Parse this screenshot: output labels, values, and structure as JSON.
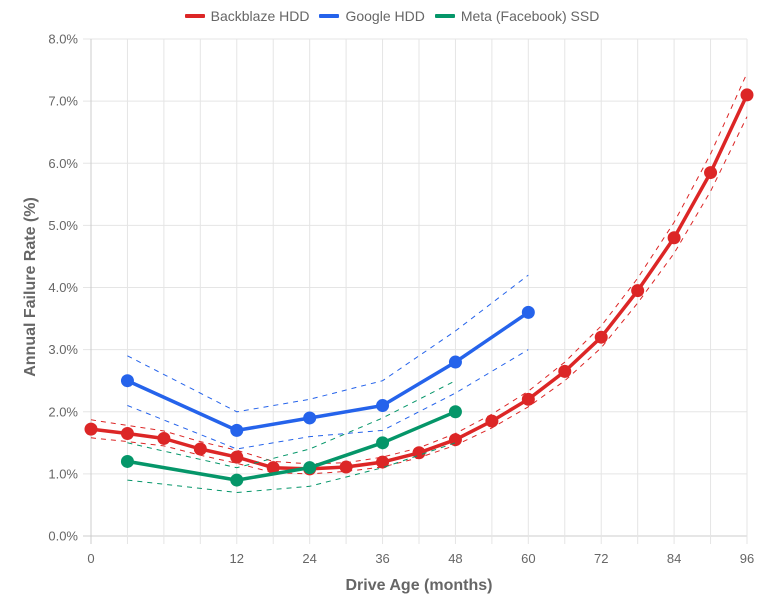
{
  "legend": {
    "items": [
      {
        "label": "Backblaze HDD",
        "color": "#dc2626"
      },
      {
        "label": "Google HDD",
        "color": "#2563eb"
      },
      {
        "label": "Meta (Facebook) SSD",
        "color": "#059669"
      }
    ]
  },
  "axes": {
    "x_title": "Drive Age (months)",
    "y_title": "Annual Failure Rate (%)"
  },
  "chart_data": {
    "type": "line",
    "title": "",
    "xlabel": "Drive Age (months)",
    "ylabel": "Annual Failure Rate (%)",
    "ylim": [
      0,
      8
    ],
    "y_ticks": [
      "0.0%",
      "1.0%",
      "2.0%",
      "3.0%",
      "4.0%",
      "5.0%",
      "6.0%",
      "7.0%",
      "8.0%"
    ],
    "x_categories": [
      0,
      3,
      6,
      9,
      12,
      18,
      24,
      30,
      36,
      42,
      48,
      54,
      60,
      66,
      72,
      78,
      84,
      90,
      96
    ],
    "x_tick_labels": [
      "0",
      "",
      "",
      "",
      "12",
      "",
      "24",
      "",
      "36",
      "",
      "48",
      "",
      "60",
      "",
      "72",
      "",
      "84",
      "",
      "96"
    ],
    "grid": true,
    "legend_position": "top",
    "series": [
      {
        "name": "Backblaze HDD",
        "color": "#dc2626",
        "x": [
          0,
          3,
          6,
          9,
          12,
          18,
          24,
          30,
          36,
          42,
          48,
          54,
          60,
          66,
          72,
          78,
          84,
          90,
          96
        ],
        "values": [
          1.72,
          1.65,
          1.57,
          1.4,
          1.27,
          1.1,
          1.08,
          1.11,
          1.19,
          1.34,
          1.55,
          1.85,
          2.2,
          2.65,
          3.2,
          3.95,
          4.8,
          5.85,
          7.1
        ],
        "upper": [
          1.87,
          1.78,
          1.69,
          1.52,
          1.38,
          1.2,
          1.16,
          1.18,
          1.27,
          1.42,
          1.65,
          1.96,
          2.33,
          2.8,
          3.38,
          4.15,
          5.05,
          6.15,
          7.45
        ],
        "lower": [
          1.58,
          1.52,
          1.45,
          1.3,
          1.17,
          1.02,
          1.0,
          1.04,
          1.11,
          1.26,
          1.46,
          1.74,
          2.08,
          2.5,
          3.03,
          3.75,
          4.55,
          5.55,
          6.75
        ]
      },
      {
        "name": "Google HDD",
        "color": "#2563eb",
        "x": [
          3,
          12,
          24,
          36,
          48,
          60
        ],
        "values": [
          2.5,
          1.7,
          1.9,
          2.1,
          2.8,
          3.6
        ],
        "upper": [
          2.9,
          2.0,
          2.2,
          2.5,
          3.3,
          4.2
        ],
        "lower": [
          2.1,
          1.4,
          1.6,
          1.7,
          2.3,
          3.0
        ]
      },
      {
        "name": "Meta (Facebook) SSD",
        "color": "#059669",
        "x": [
          3,
          12,
          24,
          36,
          48
        ],
        "values": [
          1.2,
          0.9,
          1.1,
          1.5,
          2.0
        ],
        "upper": [
          1.5,
          1.1,
          1.4,
          1.9,
          2.5
        ],
        "lower": [
          0.9,
          0.7,
          0.8,
          1.1,
          1.5
        ]
      }
    ]
  }
}
